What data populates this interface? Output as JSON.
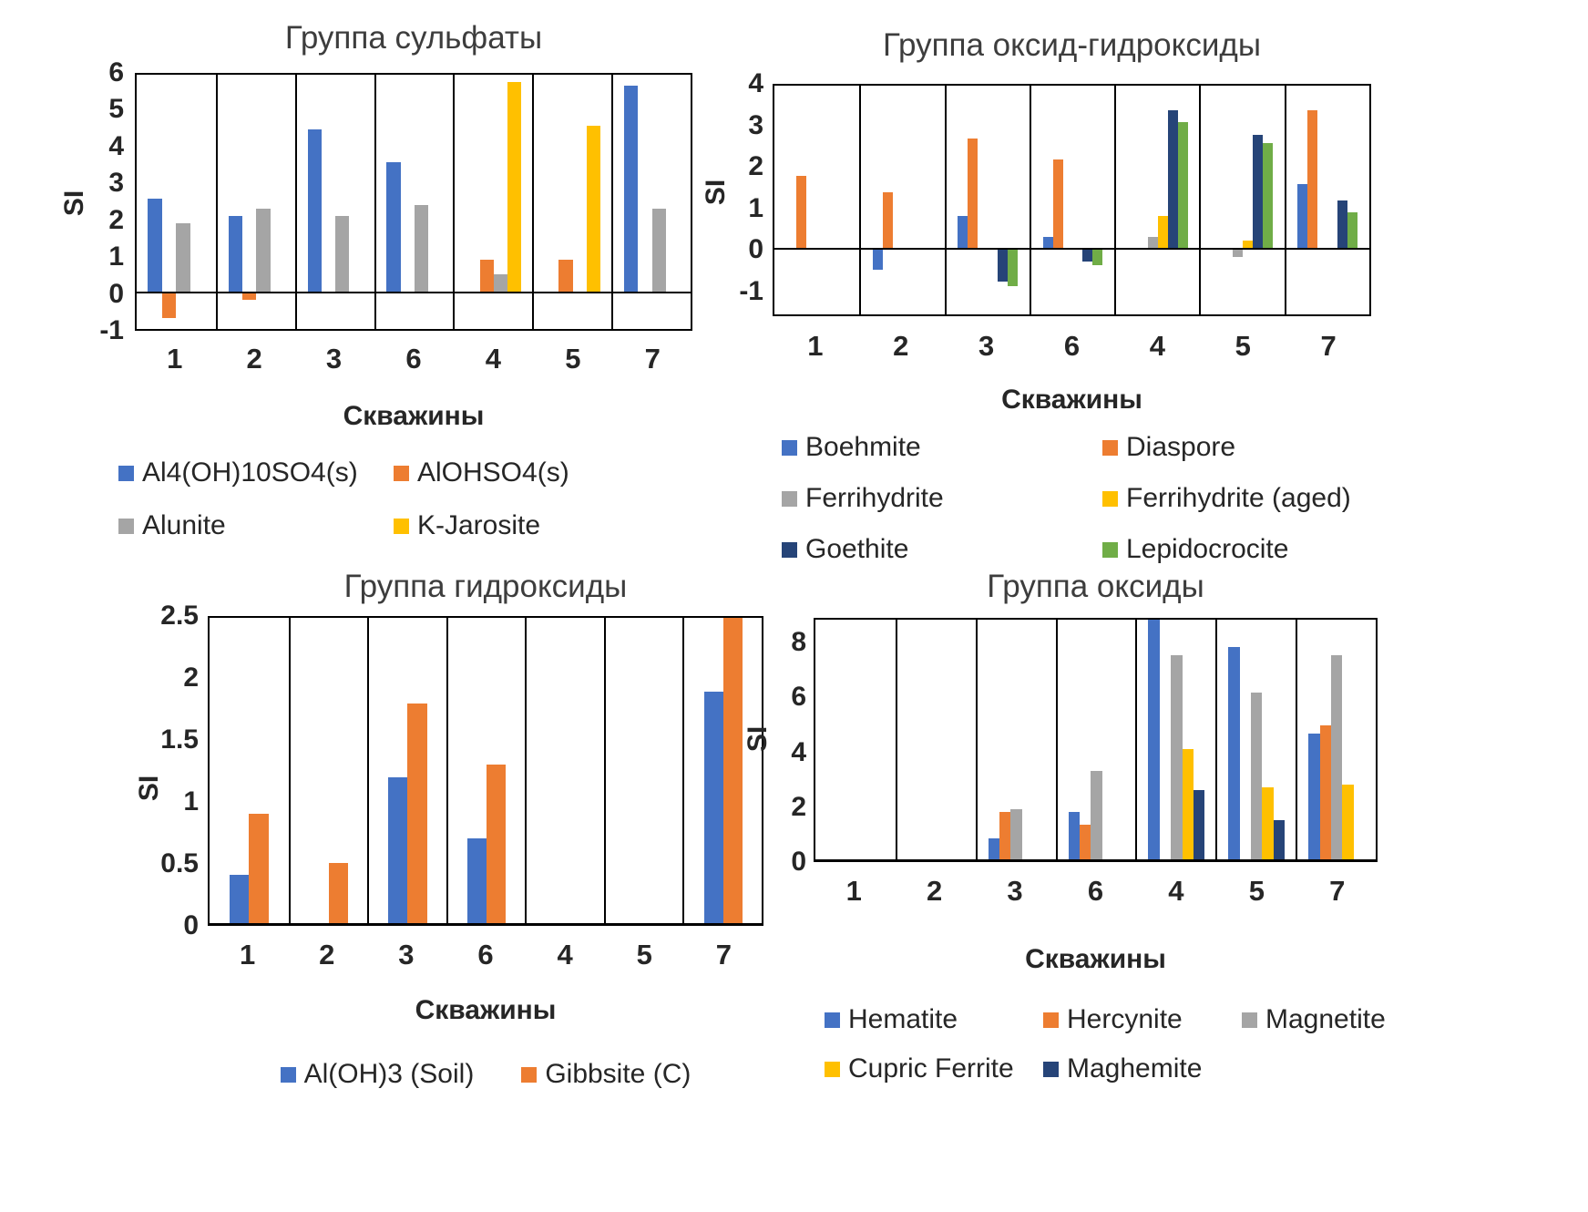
{
  "chart_data": [
    {
      "type": "bar",
      "name": "sulfates-group",
      "title": "Группа сульфаты",
      "ylabel": "SI",
      "xlabel": "Скважины",
      "categories": [
        "1",
        "2",
        "3",
        "6",
        "4",
        "5",
        "7"
      ],
      "ymin": -1,
      "ymax": 6,
      "yticks": [
        6,
        5,
        4,
        3,
        2,
        1,
        0,
        -1
      ],
      "grid": false,
      "legend_position": "bottom",
      "legend_cols": 2,
      "series": [
        {
          "name": "Al4(OH)10SO4(s)",
          "color": "#4472C4",
          "values": [
            2.6,
            2.1,
            4.5,
            3.6,
            null,
            null,
            5.7
          ]
        },
        {
          "name": "AlOHSO4(s)",
          "color": "#ED7D31",
          "values": [
            -0.7,
            -0.2,
            null,
            null,
            0.9,
            0.9,
            null
          ]
        },
        {
          "name": "Alunite",
          "color": "#A5A5A5",
          "values": [
            1.9,
            2.3,
            2.1,
            2.4,
            0.5,
            null,
            2.3
          ]
        },
        {
          "name": "K-Jarosite",
          "color": "#FFC000",
          "values": [
            null,
            null,
            null,
            null,
            5.8,
            4.6,
            null
          ]
        }
      ]
    },
    {
      "type": "bar",
      "name": "oxide-hydroxides-group",
      "title": "Группа оксид-гидроксиды",
      "ylabel": "SI",
      "xlabel": "Скважины",
      "categories": [
        "1",
        "2",
        "3",
        "6",
        "4",
        "5",
        "7"
      ],
      "ymin": -1.6,
      "ymax": 4,
      "yticks": [
        4,
        3,
        2,
        1,
        0,
        -1
      ],
      "grid": false,
      "legend_position": "bottom",
      "legend_cols": 2,
      "series": [
        {
          "name": "Boehmite",
          "color": "#4472C4",
          "values": [
            null,
            -0.5,
            0.8,
            0.3,
            null,
            null,
            1.6
          ]
        },
        {
          "name": "Diaspore",
          "color": "#ED7D31",
          "values": [
            1.8,
            1.4,
            2.7,
            2.2,
            null,
            null,
            3.4
          ]
        },
        {
          "name": "Ferrihydrite",
          "color": "#A5A5A5",
          "values": [
            null,
            null,
            null,
            null,
            0.3,
            -0.2,
            null
          ]
        },
        {
          "name": "Ferrihydrite (aged)",
          "color": "#FFC000",
          "values": [
            null,
            null,
            null,
            null,
            0.8,
            0.2,
            null
          ]
        },
        {
          "name": "Goethite",
          "color": "#264478",
          "values": [
            null,
            null,
            -0.8,
            -0.3,
            3.4,
            2.8,
            1.2
          ]
        },
        {
          "name": "Lepidocrocite",
          "color": "#70AD47",
          "values": [
            null,
            null,
            -0.9,
            -0.4,
            3.1,
            2.6,
            0.9
          ]
        }
      ]
    },
    {
      "type": "bar",
      "name": "hydroxides-group",
      "title": "Группа гидроксиды",
      "ylabel": "SI",
      "xlabel": "Скважины",
      "categories": [
        "1",
        "2",
        "3",
        "6",
        "4",
        "5",
        "7"
      ],
      "ymin": 0,
      "ymax": 2.5,
      "yticks": [
        2.5,
        2,
        1.5,
        1,
        0.5,
        0
      ],
      "grid": false,
      "legend_position": "bottom",
      "legend_cols": 2,
      "series": [
        {
          "name": "Al(OH)3 (Soil)",
          "color": "#4472C4",
          "values": [
            0.4,
            null,
            1.2,
            0.7,
            null,
            null,
            1.9
          ]
        },
        {
          "name": "Gibbsite (C)",
          "color": "#ED7D31",
          "values": [
            0.9,
            0.5,
            1.8,
            1.3,
            null,
            null,
            2.5
          ]
        }
      ]
    },
    {
      "type": "bar",
      "name": "oxides-group",
      "title": "Группа оксиды",
      "ylabel": "SI",
      "xlabel": "Скважины",
      "categories": [
        "1",
        "2",
        "3",
        "6",
        "4",
        "5",
        "7"
      ],
      "ymin": 0,
      "ymax": 8.9,
      "yticks": [
        8,
        6,
        4,
        2,
        0
      ],
      "grid": false,
      "legend_position": "bottom",
      "legend_cols": 3,
      "series": [
        {
          "name": "Hematite",
          "color": "#4472C4",
          "values": [
            null,
            null,
            0.8,
            1.8,
            8.9,
            7.9,
            4.7
          ]
        },
        {
          "name": "Hercynite",
          "color": "#ED7D31",
          "values": [
            null,
            null,
            1.8,
            1.3,
            null,
            null,
            5.0
          ]
        },
        {
          "name": "Magnetite",
          "color": "#A5A5A5",
          "values": [
            null,
            null,
            1.9,
            3.3,
            7.6,
            6.2,
            7.6
          ]
        },
        {
          "name": "Cupric Ferrite",
          "color": "#FFC000",
          "values": [
            null,
            null,
            null,
            null,
            4.1,
            2.7,
            2.8
          ]
        },
        {
          "name": "Maghemite",
          "color": "#264478",
          "values": [
            null,
            null,
            null,
            null,
            2.6,
            1.5,
            null
          ]
        }
      ]
    }
  ]
}
